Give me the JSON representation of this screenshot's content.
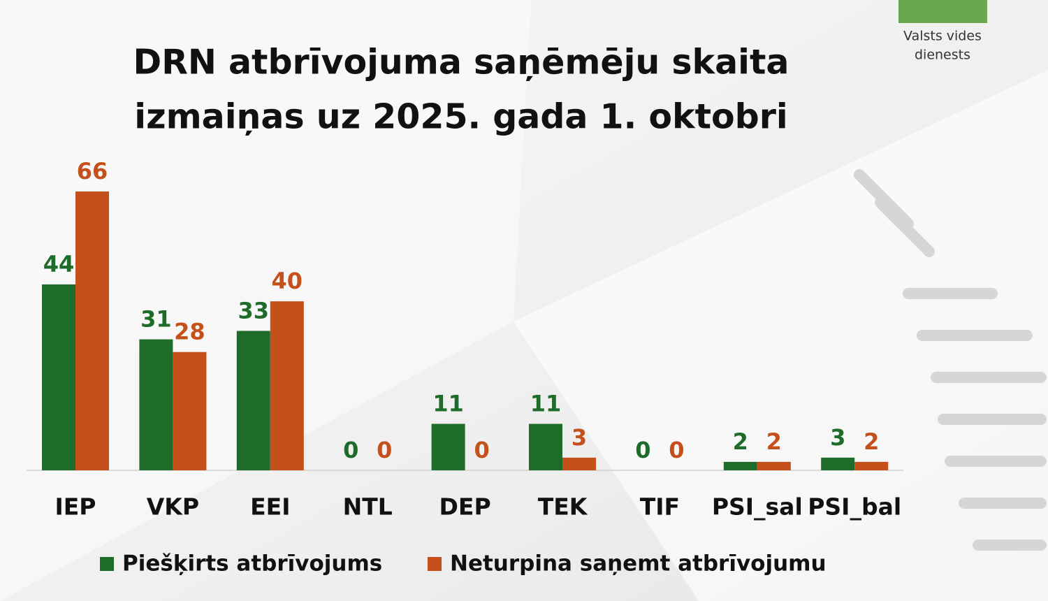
{
  "logo": [
    "Valsts vides",
    "dienests"
  ],
  "chart_data": {
    "type": "bar",
    "title": [
      "DRN atbrīvojuma saņēmēju skaita",
      "izmaiņas uz 2025. gada 1. oktobri"
    ],
    "categories": [
      "IEP",
      "VKP",
      "EEI",
      "NTL",
      "DEP",
      "TEK",
      "TIF",
      "PSI_sal",
      "PSI_bal"
    ],
    "series": [
      {
        "name": "Piešķirts atbrīvojums",
        "color": "#1e6b2a",
        "values": [
          44,
          31,
          33,
          0,
          11,
          11,
          0,
          2,
          3
        ]
      },
      {
        "name": "Neturpina saņemt atbrīvojumu",
        "color": "#c4511b",
        "values": [
          66,
          28,
          40,
          0,
          0,
          3,
          0,
          2,
          2
        ]
      }
    ],
    "legend": "bottom"
  }
}
